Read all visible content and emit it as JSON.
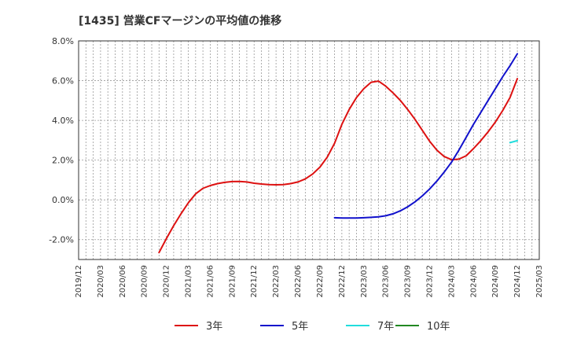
{
  "chart_data": {
    "type": "line",
    "title": "[1435]  営業CFマージンの平均値の推移",
    "xlabel": "",
    "ylabel": "",
    "y_unit": "%",
    "ylim": [
      -3.0,
      8.0
    ],
    "yticks": [
      -2.0,
      0.0,
      2.0,
      4.0,
      6.0,
      8.0
    ],
    "ytick_labels": [
      "-2.0%",
      "0.0%",
      "2.0%",
      "4.0%",
      "6.0%",
      "8.0%"
    ],
    "xlim": [
      "2019/12",
      "2025/03"
    ],
    "xtick_labels": [
      "2019/12",
      "2020/03",
      "2020/06",
      "2020/09",
      "2020/12",
      "2021/03",
      "2021/06",
      "2021/09",
      "2021/12",
      "2022/03",
      "2022/06",
      "2022/09",
      "2022/12",
      "2023/03",
      "2023/06",
      "2023/09",
      "2023/12",
      "2024/03",
      "2024/06",
      "2024/09",
      "2024/12",
      "2025/03"
    ],
    "grid": true,
    "legend_position": "bottom",
    "series": [
      {
        "name": "3年",
        "color": "#dd1111",
        "x": [
          "2020/11",
          "2020/12",
          "2021/01",
          "2021/02",
          "2021/03",
          "2021/04",
          "2021/05",
          "2021/06",
          "2021/07",
          "2021/08",
          "2021/09",
          "2021/10",
          "2021/11",
          "2021/12",
          "2022/01",
          "2022/02",
          "2022/03",
          "2022/04",
          "2022/05",
          "2022/06",
          "2022/07",
          "2022/08",
          "2022/09",
          "2022/10",
          "2022/11",
          "2022/12",
          "2023/01",
          "2023/02",
          "2023/03",
          "2023/04",
          "2023/05",
          "2023/06",
          "2023/07",
          "2023/08",
          "2023/09",
          "2023/10",
          "2023/11",
          "2023/12",
          "2024/01",
          "2024/02",
          "2024/03",
          "2024/04",
          "2024/05",
          "2024/06",
          "2024/07",
          "2024/08",
          "2024/09",
          "2024/10",
          "2024/11",
          "2024/12"
        ],
        "y": [
          -2.65,
          -1.95,
          -1.3,
          -0.7,
          -0.15,
          0.3,
          0.58,
          0.72,
          0.82,
          0.88,
          0.92,
          0.93,
          0.9,
          0.84,
          0.8,
          0.77,
          0.76,
          0.77,
          0.82,
          0.9,
          1.05,
          1.3,
          1.65,
          2.15,
          2.85,
          3.8,
          4.55,
          5.15,
          5.6,
          5.92,
          5.98,
          5.72,
          5.38,
          5.0,
          4.55,
          4.05,
          3.5,
          2.95,
          2.5,
          2.18,
          2.02,
          2.05,
          2.22,
          2.58,
          2.98,
          3.42,
          3.92,
          4.5,
          5.15,
          6.1
        ]
      },
      {
        "name": "5年",
        "color": "#1111cc",
        "x": [
          "2022/11",
          "2022/12",
          "2023/01",
          "2023/02",
          "2023/03",
          "2023/04",
          "2023/05",
          "2023/06",
          "2023/07",
          "2023/08",
          "2023/09",
          "2023/10",
          "2023/11",
          "2023/12",
          "2024/01",
          "2024/02",
          "2024/03",
          "2024/04",
          "2024/05",
          "2024/06",
          "2024/07",
          "2024/08",
          "2024/09",
          "2024/10",
          "2024/11",
          "2024/12"
        ],
        "y": [
          -0.9,
          -0.91,
          -0.91,
          -0.91,
          -0.9,
          -0.88,
          -0.85,
          -0.8,
          -0.7,
          -0.55,
          -0.35,
          -0.1,
          0.2,
          0.55,
          0.95,
          1.4,
          1.9,
          2.5,
          3.15,
          3.8,
          4.4,
          5.0,
          5.6,
          6.2,
          6.75,
          7.35
        ]
      },
      {
        "name": "7年",
        "color": "#22dddd",
        "x": [
          "2024/11",
          "2024/12"
        ],
        "y": [
          2.88,
          2.98
        ]
      },
      {
        "name": "10年",
        "color": "#228822",
        "x": [],
        "y": []
      }
    ]
  }
}
